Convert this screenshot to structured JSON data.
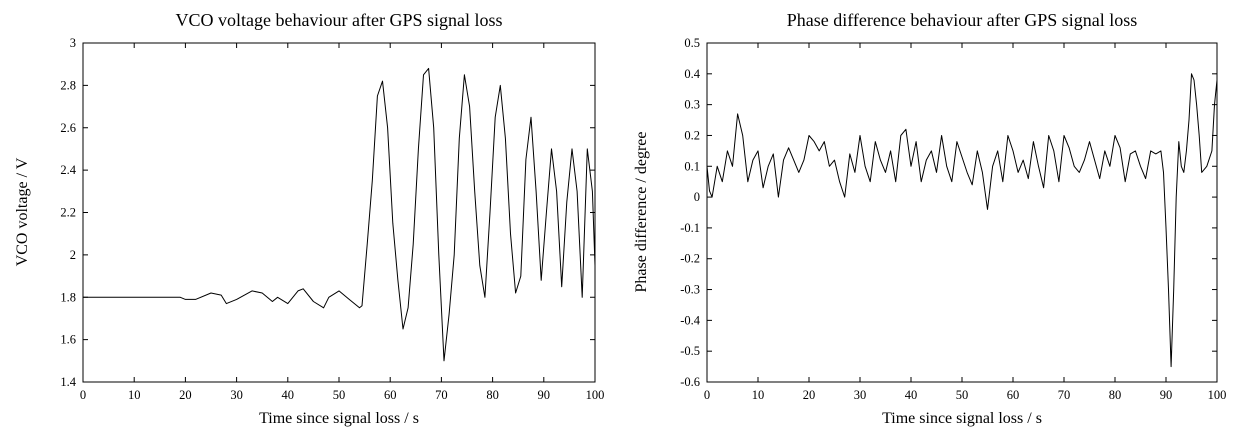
{
  "chart_data": [
    {
      "type": "line",
      "title": "VCO voltage behaviour after GPS signal loss",
      "xlabel": "Time since signal loss / s",
      "ylabel": "VCO voltage / V",
      "xlim": [
        0,
        100
      ],
      "ylim": [
        1.4,
        3
      ],
      "xticks": [
        "0",
        "10",
        "20",
        "30",
        "40",
        "50",
        "60",
        "70",
        "80",
        "90",
        "100"
      ],
      "yticks": [
        "1.4",
        "1.6",
        "1.8",
        "2",
        "2.2",
        "2.4",
        "2.6",
        "2.8",
        "3"
      ],
      "grid": false,
      "legend": "none",
      "series": [
        {
          "x": [
            0,
            5,
            10,
            15,
            19,
            20,
            22,
            25,
            27,
            28,
            30,
            33,
            35,
            37,
            38,
            40,
            42,
            43,
            45,
            47,
            48,
            50,
            52,
            54,
            54.5,
            55.5,
            56.5,
            57.5,
            58.5,
            59.5,
            60.5,
            61.5,
            62.5,
            63.5,
            64.5,
            65.5,
            66.5,
            67.5,
            68.5,
            69.5,
            70.5,
            71.5,
            72.5,
            73.5,
            74.5,
            75.5,
            76.5,
            77.5,
            78.5,
            79.5,
            80.5,
            81.5,
            82.5,
            83.5,
            84.5,
            85.5,
            86.5,
            87.5,
            88.5,
            89.5,
            90.5,
            91.5,
            92.5,
            93.5,
            94.5,
            95.5,
            96.5,
            97.5,
            98.5,
            99.5,
            100
          ],
          "y": [
            1.8,
            1.8,
            1.8,
            1.8,
            1.8,
            1.79,
            1.79,
            1.82,
            1.81,
            1.77,
            1.79,
            1.83,
            1.82,
            1.78,
            1.8,
            1.77,
            1.83,
            1.84,
            1.78,
            1.75,
            1.8,
            1.83,
            1.79,
            1.75,
            1.76,
            2.05,
            2.35,
            2.75,
            2.82,
            2.6,
            2.15,
            1.88,
            1.65,
            1.75,
            2.05,
            2.5,
            2.85,
            2.88,
            2.6,
            2.0,
            1.5,
            1.72,
            2.0,
            2.55,
            2.85,
            2.7,
            2.3,
            1.95,
            1.8,
            2.2,
            2.65,
            2.8,
            2.55,
            2.1,
            1.82,
            1.9,
            2.45,
            2.65,
            2.3,
            1.88,
            2.2,
            2.5,
            2.3,
            1.85,
            2.25,
            2.5,
            2.3,
            1.8,
            2.5,
            2.3,
            1.95
          ]
        }
      ]
    },
    {
      "type": "line",
      "title": "Phase difference behaviour after GPS signal loss",
      "xlabel": "Time since signal loss / s",
      "ylabel": "Phase difference / degree",
      "xlim": [
        0,
        100
      ],
      "ylim": [
        -0.6,
        0.5
      ],
      "xticks": [
        "0",
        "10",
        "20",
        "30",
        "40",
        "50",
        "60",
        "70",
        "80",
        "90",
        "100"
      ],
      "yticks": [
        "-0.6",
        "-0.5",
        "-0.4",
        "-0.3",
        "-0.2",
        "-0.1",
        "0",
        "0.1",
        "0.2",
        "0.3",
        "0.4",
        "0.5"
      ],
      "grid": false,
      "legend": "none",
      "series": [
        {
          "x": [
            0,
            0.5,
            1,
            2,
            3,
            4,
            5,
            6,
            7,
            8,
            9,
            10,
            11,
            12,
            13,
            14,
            15,
            16,
            17,
            18,
            19,
            20,
            21,
            22,
            23,
            24,
            25,
            26,
            27,
            28,
            29,
            30,
            31,
            32,
            33,
            34,
            35,
            36,
            37,
            38,
            39,
            40,
            41,
            42,
            43,
            44,
            45,
            46,
            47,
            48,
            49,
            50,
            51,
            52,
            53,
            54,
            55,
            56,
            57,
            58,
            59,
            60,
            61,
            62,
            63,
            64,
            65,
            66,
            67,
            68,
            69,
            70,
            71,
            72,
            73,
            74,
            75,
            76,
            77,
            78,
            79,
            80,
            81,
            82,
            83,
            84,
            85,
            86,
            87,
            88,
            89,
            89.5,
            90,
            90.5,
            91,
            91.5,
            92,
            92.5,
            93,
            93.5,
            94,
            94.5,
            95,
            95.5,
            96,
            96.5,
            97,
            98,
            99,
            99.5,
            100
          ],
          "y": [
            0.1,
            0.02,
            0.0,
            0.1,
            0.05,
            0.15,
            0.1,
            0.27,
            0.2,
            0.05,
            0.12,
            0.15,
            0.03,
            0.1,
            0.14,
            0.0,
            0.12,
            0.16,
            0.12,
            0.08,
            0.12,
            0.2,
            0.18,
            0.15,
            0.18,
            0.1,
            0.12,
            0.05,
            0.0,
            0.14,
            0.08,
            0.2,
            0.1,
            0.05,
            0.18,
            0.12,
            0.08,
            0.15,
            0.05,
            0.2,
            0.22,
            0.1,
            0.18,
            0.05,
            0.12,
            0.15,
            0.08,
            0.2,
            0.1,
            0.05,
            0.18,
            0.13,
            0.08,
            0.04,
            0.15,
            0.08,
            -0.04,
            0.1,
            0.15,
            0.05,
            0.2,
            0.15,
            0.08,
            0.12,
            0.06,
            0.18,
            0.1,
            0.03,
            0.2,
            0.15,
            0.05,
            0.2,
            0.16,
            0.1,
            0.08,
            0.12,
            0.18,
            0.12,
            0.06,
            0.15,
            0.1,
            0.2,
            0.16,
            0.05,
            0.14,
            0.15,
            0.1,
            0.06,
            0.15,
            0.14,
            0.15,
            0.08,
            -0.1,
            -0.3,
            -0.55,
            -0.3,
            0.0,
            0.18,
            0.1,
            0.08,
            0.15,
            0.25,
            0.4,
            0.38,
            0.3,
            0.2,
            0.08,
            0.1,
            0.15,
            0.3,
            0.38
          ]
        }
      ]
    }
  ]
}
